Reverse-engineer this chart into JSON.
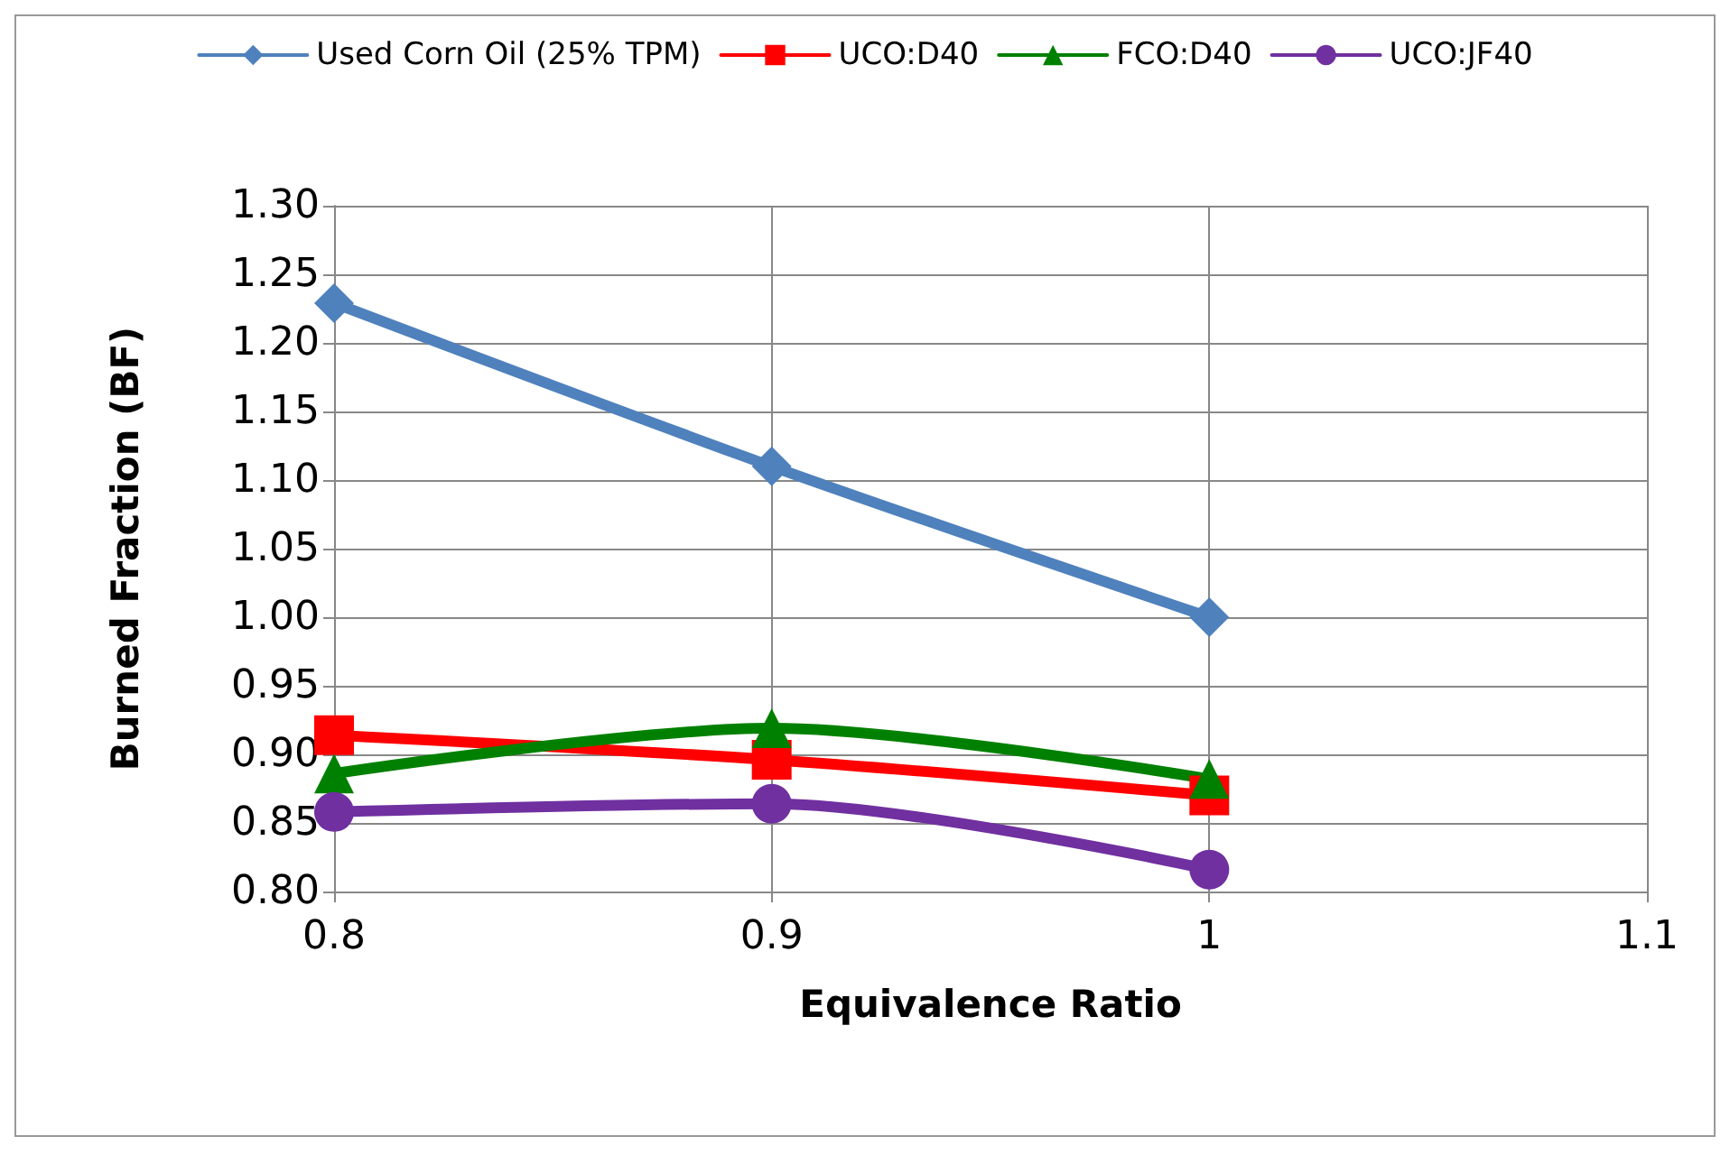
{
  "chart_data": {
    "type": "line",
    "xlabel": "Equivalence Ratio",
    "ylabel": "Burned Fraction (BF)",
    "x": [
      0.8,
      0.9,
      1
    ],
    "series": [
      {
        "name": "Used Corn Oil (25% TPM)",
        "color": "#4f81bd",
        "marker": "diamond",
        "values": [
          1.229,
          1.11,
          1.0
        ]
      },
      {
        "name": "UCO:D40",
        "color": "#ff0000",
        "marker": "square",
        "values": [
          0.914,
          0.896,
          0.87
        ]
      },
      {
        "name": "FCO:D40",
        "color": "#008000",
        "marker": "triangle",
        "values": [
          0.886,
          0.919,
          0.882
        ]
      },
      {
        "name": "UCO:JF40",
        "color": "#7030a0",
        "marker": "circle",
        "values": [
          0.858,
          0.864,
          0.816
        ]
      }
    ],
    "xlim": [
      0.8,
      1.1
    ],
    "xticks": [
      0.8,
      0.9,
      1,
      1.1
    ],
    "ylim": [
      0.8,
      1.3
    ],
    "yticks": [
      {
        "value": 0.8,
        "label": "0.80"
      },
      {
        "value": 0.85,
        "label": "0.85"
      },
      {
        "value": 0.9,
        "label": "0.90"
      },
      {
        "value": 0.95,
        "label": "0.95"
      },
      {
        "value": 1.0,
        "label": "1.00"
      },
      {
        "value": 1.05,
        "label": "1.05"
      },
      {
        "value": 1.1,
        "label": "1.10"
      },
      {
        "value": 1.15,
        "label": "1.15"
      },
      {
        "value": 1.2,
        "label": "1.20"
      },
      {
        "value": 1.25,
        "label": "1.25"
      },
      {
        "value": 1.3,
        "label": "1.30"
      }
    ],
    "grid": true,
    "legend": "top",
    "line_style": "solid"
  }
}
